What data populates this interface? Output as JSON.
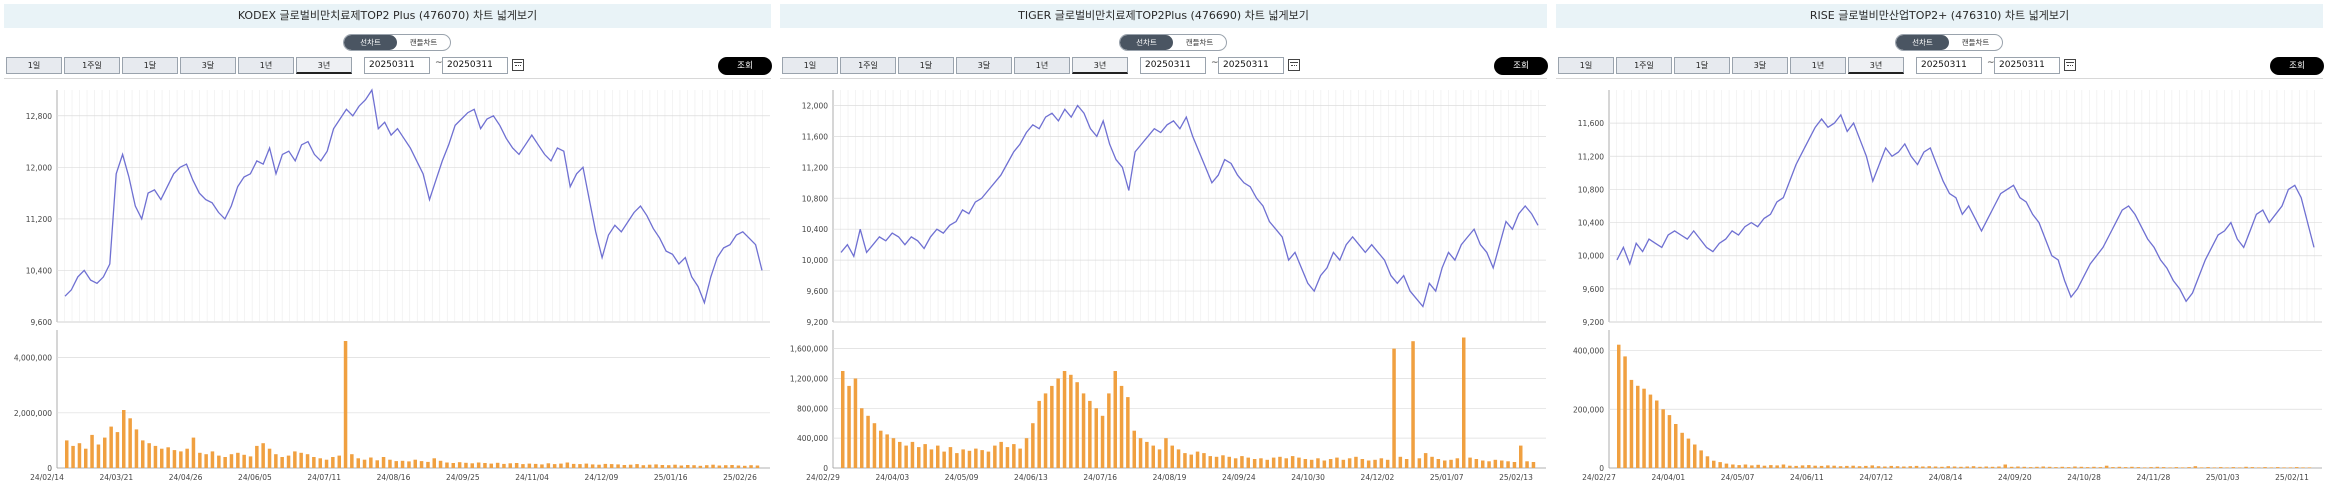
{
  "toggle": {
    "line": "선차트",
    "candle": "캔들차트"
  },
  "periods": [
    "1일",
    "1주일",
    "1달",
    "3달",
    "1년",
    "3년"
  ],
  "active_period": 5,
  "tilde": "~",
  "search_label": "조회",
  "colors": {
    "price_line": "#6f70d2",
    "volume_bar": "#f0a040",
    "grid": "#e4e4e4",
    "title_bg": "#e9f3f7"
  },
  "panels": [
    {
      "title": "KODEX 글로벌비만치료제TOP2 Plus (476070) 차트 넓게보기",
      "start_date": "20250311",
      "end_date": "20250311",
      "chart_data": {
        "type": "line",
        "price": {
          "y_ticks": [
            "12,800",
            "12,000",
            "11,200",
            "10,400",
            "9,600"
          ],
          "ylim": [
            9600,
            13200
          ],
          "values": [
            10000,
            10100,
            10300,
            10400,
            10250,
            10200,
            10300,
            10500,
            11900,
            12200,
            11850,
            11400,
            11200,
            11600,
            11650,
            11500,
            11700,
            11900,
            12000,
            12050,
            11800,
            11600,
            11500,
            11450,
            11300,
            11200,
            11400,
            11700,
            11850,
            11900,
            12100,
            12050,
            12300,
            11900,
            12200,
            12250,
            12100,
            12350,
            12400,
            12200,
            12100,
            12250,
            12600,
            12750,
            12900,
            12800,
            12950,
            13050,
            13200,
            12600,
            12700,
            12500,
            12600,
            12450,
            12300,
            12100,
            11900,
            11500,
            11800,
            12100,
            12350,
            12650,
            12750,
            12850,
            12900,
            12600,
            12750,
            12800,
            12650,
            12450,
            12300,
            12200,
            12350,
            12500,
            12350,
            12200,
            12100,
            12300,
            12250,
            11700,
            11900,
            12000,
            11500,
            11000,
            10600,
            10950,
            11100,
            11000,
            11150,
            11300,
            11400,
            11250,
            11050,
            10900,
            10700,
            10650,
            10500,
            10600,
            10300,
            10150,
            9900,
            10300,
            10600,
            10750,
            10800,
            10950,
            11000,
            10900,
            10800,
            10400
          ],
          "series": "price"
        },
        "volume": {
          "y_ticks": [
            "4,000,000",
            "2,000,000",
            "0"
          ],
          "ylim": [
            0,
            5000000
          ],
          "x_ticks": [
            "24/02/14",
            "24/03/21",
            "24/04/26",
            "24/06/05",
            "24/07/11",
            "24/08/16",
            "24/09/25",
            "24/11/04",
            "24/12/09",
            "25/01/16",
            "25/02/26"
          ],
          "values": [
            1000000,
            800000,
            900000,
            700000,
            1200000,
            850000,
            1100000,
            1500000,
            1300000,
            2100000,
            1800000,
            1400000,
            1000000,
            900000,
            800000,
            700000,
            750000,
            650000,
            600000,
            700000,
            1100000,
            550000,
            500000,
            600000,
            450000,
            400000,
            500000,
            550000,
            480000,
            420000,
            800000,
            900000,
            700000,
            500000,
            400000,
            450000,
            600000,
            550000,
            500000,
            400000,
            350000,
            300000,
            400000,
            450000,
            4600000,
            500000,
            350000,
            300000,
            380000,
            280000,
            400000,
            300000,
            250000,
            260000,
            240000,
            300000,
            250000,
            220000,
            350000,
            260000,
            200000,
            180000,
            210000,
            190000,
            170000,
            200000,
            180000,
            160000,
            190000,
            150000,
            170000,
            180000,
            140000,
            160000,
            150000,
            130000,
            170000,
            140000,
            160000,
            200000,
            150000,
            140000,
            160000,
            130000,
            120000,
            150000,
            140000,
            130000,
            110000,
            120000,
            140000,
            100000,
            120000,
            130000,
            110000,
            100000,
            120000,
            90000,
            110000,
            100000,
            80000,
            100000,
            120000,
            90000,
            100000,
            110000,
            90000,
            80000,
            100000,
            90000
          ]
        }
      }
    },
    {
      "title": "TIGER 글로벌비만치료제TOP2Plus (476690) 차트 넓게보기",
      "start_date": "20250311",
      "end_date": "20250311",
      "chart_data": {
        "type": "line",
        "price": {
          "y_ticks": [
            "12,000",
            "11,600",
            "11,200",
            "10,800",
            "10,400",
            "10,000",
            "9,600",
            "9,200"
          ],
          "ylim": [
            9200,
            12200
          ],
          "values": [
            10100,
            10200,
            10050,
            10400,
            10100,
            10200,
            10300,
            10250,
            10350,
            10300,
            10200,
            10300,
            10250,
            10150,
            10300,
            10400,
            10350,
            10450,
            10500,
            10650,
            10600,
            10750,
            10800,
            10900,
            11000,
            11100,
            11250,
            11400,
            11500,
            11650,
            11750,
            11700,
            11850,
            11900,
            11800,
            11950,
            11850,
            12000,
            11900,
            11700,
            11600,
            11800,
            11500,
            11300,
            11200,
            10900,
            11400,
            11500,
            11600,
            11700,
            11650,
            11750,
            11800,
            11700,
            11850,
            11600,
            11400,
            11200,
            11000,
            11100,
            11300,
            11250,
            11100,
            11000,
            10950,
            10800,
            10700,
            10500,
            10400,
            10300,
            10000,
            10100,
            9900,
            9700,
            9600,
            9800,
            9900,
            10100,
            10000,
            10200,
            10300,
            10200,
            10100,
            10200,
            10100,
            10000,
            9800,
            9700,
            9800,
            9600,
            9500,
            9400,
            9700,
            9600,
            9900,
            10100,
            10000,
            10200,
            10300,
            10400,
            10200,
            10100,
            9900,
            10200,
            10500,
            10400,
            10600,
            10700,
            10600,
            10450
          ],
          "series": "price"
        },
        "volume": {
          "y_ticks": [
            "1,600,000",
            "1,200,000",
            "800,000",
            "400,000",
            "0"
          ],
          "ylim": [
            0,
            1850000
          ],
          "x_ticks": [
            "24/02/29",
            "24/04/03",
            "24/05/09",
            "24/06/13",
            "24/07/16",
            "24/08/19",
            "24/09/24",
            "24/10/30",
            "24/12/02",
            "25/01/07",
            "25/02/13"
          ],
          "values": [
            1300000,
            1100000,
            1200000,
            800000,
            700000,
            600000,
            500000,
            450000,
            400000,
            350000,
            300000,
            350000,
            280000,
            320000,
            250000,
            300000,
            220000,
            280000,
            200000,
            250000,
            230000,
            260000,
            240000,
            220000,
            300000,
            350000,
            280000,
            320000,
            260000,
            400000,
            600000,
            900000,
            1000000,
            1100000,
            1200000,
            1300000,
            1250000,
            1150000,
            1000000,
            900000,
            800000,
            700000,
            1000000,
            1300000,
            1100000,
            950000,
            500000,
            400000,
            350000,
            300000,
            250000,
            400000,
            300000,
            250000,
            200000,
            180000,
            220000,
            200000,
            160000,
            150000,
            170000,
            150000,
            130000,
            160000,
            140000,
            120000,
            130000,
            110000,
            140000,
            150000,
            130000,
            160000,
            140000,
            120000,
            110000,
            130000,
            100000,
            120000,
            140000,
            110000,
            130000,
            150000,
            120000,
            100000,
            110000,
            130000,
            110000,
            1600000,
            150000,
            120000,
            1700000,
            130000,
            200000,
            150000,
            120000,
            100000,
            110000,
            130000,
            1750000,
            140000,
            120000,
            100000,
            90000,
            110000,
            100000,
            90000,
            80000,
            300000,
            90000,
            80000
          ]
        }
      }
    },
    {
      "title": "RISE 글로벌비만산업TOP2+ (476310) 차트 넓게보기",
      "start_date": "20250311",
      "end_date": "20250311",
      "chart_data": {
        "type": "line",
        "price": {
          "y_ticks": [
            "11,600",
            "11,200",
            "10,800",
            "10,400",
            "10,000",
            "9,600",
            "9,200"
          ],
          "ylim": [
            9200,
            12000
          ],
          "values": [
            9950,
            10100,
            9900,
            10150,
            10050,
            10200,
            10150,
            10100,
            10250,
            10300,
            10250,
            10200,
            10300,
            10200,
            10100,
            10050,
            10150,
            10200,
            10300,
            10250,
            10350,
            10400,
            10350,
            10450,
            10500,
            10650,
            10700,
            10900,
            11100,
            11250,
            11400,
            11550,
            11650,
            11550,
            11600,
            11700,
            11500,
            11600,
            11400,
            11200,
            10900,
            11100,
            11300,
            11200,
            11250,
            11350,
            11200,
            11100,
            11250,
            11300,
            11100,
            10900,
            10750,
            10700,
            10500,
            10600,
            10450,
            10300,
            10450,
            10600,
            10750,
            10800,
            10850,
            10700,
            10650,
            10500,
            10400,
            10200,
            10000,
            9950,
            9700,
            9500,
            9600,
            9750,
            9900,
            10000,
            10100,
            10250,
            10400,
            10550,
            10600,
            10500,
            10350,
            10200,
            10100,
            9950,
            9850,
            9700,
            9600,
            9450,
            9550,
            9750,
            9950,
            10100,
            10250,
            10300,
            10400,
            10200,
            10100,
            10300,
            10500,
            10550,
            10400,
            10500,
            10600,
            10800,
            10850,
            10700,
            10400,
            10100
          ],
          "series": "price"
        },
        "volume": {
          "y_ticks": [
            "400,000",
            "200,000",
            "0"
          ],
          "ylim": [
            0,
            470000
          ],
          "x_ticks": [
            "24/02/27",
            "24/04/01",
            "24/05/07",
            "24/06/11",
            "24/07/12",
            "24/08/14",
            "24/09/20",
            "24/10/28",
            "24/11/28",
            "25/01/03",
            "25/02/11"
          ],
          "values": [
            420000,
            380000,
            300000,
            280000,
            270000,
            250000,
            230000,
            200000,
            180000,
            150000,
            120000,
            100000,
            80000,
            60000,
            40000,
            25000,
            20000,
            15000,
            12000,
            10000,
            12000,
            9000,
            11000,
            8000,
            10000,
            9000,
            12000,
            8000,
            7000,
            9000,
            10000,
            8000,
            7000,
            9000,
            8000,
            6000,
            7000,
            8000,
            6000,
            7000,
            9000,
            6000,
            5000,
            7000,
            6000,
            5000,
            6000,
            7000,
            5000,
            6000,
            5000,
            4000,
            6000,
            5000,
            4000,
            5000,
            6000,
            4000,
            5000,
            4000,
            5000,
            12000,
            4000,
            5000,
            4000,
            3000,
            4000,
            5000,
            4000,
            3000,
            4000,
            3000,
            5000,
            4000,
            3000,
            4000,
            3000,
            8000,
            3000,
            4000,
            3000,
            4000,
            3000,
            2000,
            3000,
            4000,
            3000,
            2000,
            3000,
            2000,
            3000,
            6000,
            2000,
            3000,
            2000,
            3000,
            2000,
            3000,
            2000,
            4000,
            3000,
            2000,
            3000,
            2000,
            3000,
            2000,
            2000,
            3000,
            2000,
            2000
          ]
        }
      }
    }
  ]
}
